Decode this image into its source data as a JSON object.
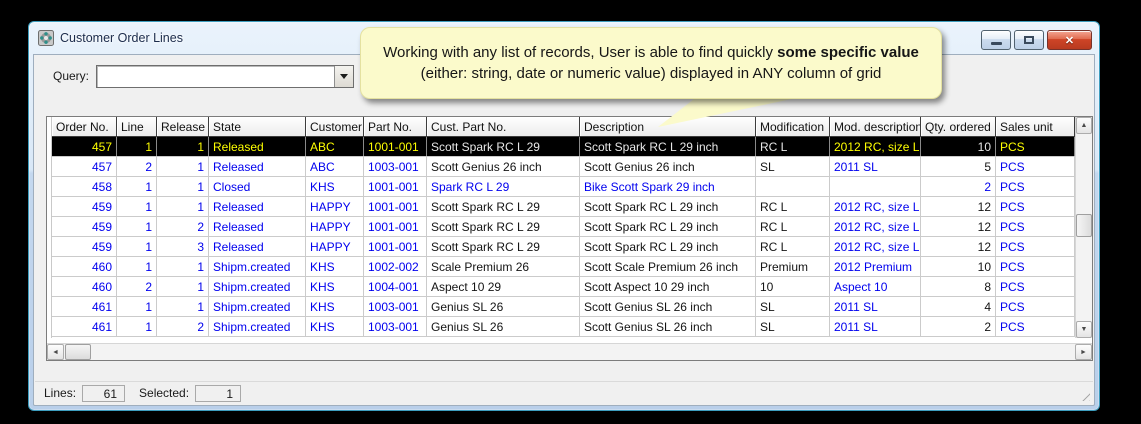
{
  "window": {
    "title": "Customer Order Lines"
  },
  "query": {
    "label": "Query:",
    "value": ""
  },
  "callout": {
    "part1": "Working with any list of records, User is able to find quickly ",
    "bold": "some specific value",
    "part2": " (either: string, date or numeric value) displayed in ANY column of grid"
  },
  "grid": {
    "columns": [
      {
        "label": "Order No.",
        "align": "right",
        "style": "blue"
      },
      {
        "label": "Line",
        "align": "right",
        "style": "blue"
      },
      {
        "label": "Release",
        "align": "right",
        "style": "blue"
      },
      {
        "label": "State",
        "align": "left",
        "style": "blue"
      },
      {
        "label": "Customer",
        "align": "left",
        "style": "blue"
      },
      {
        "label": "Part No.",
        "align": "left",
        "style": "blue"
      },
      {
        "label": "Cust. Part No.",
        "align": "left",
        "style": "black"
      },
      {
        "label": "Description",
        "align": "left",
        "style": "black"
      },
      {
        "label": "Modification",
        "align": "left",
        "style": "black"
      },
      {
        "label": "Mod. description",
        "align": "left",
        "style": "blue"
      },
      {
        "label": "Qty. ordered",
        "align": "right",
        "style": "black"
      },
      {
        "label": "Sales unit",
        "align": "left",
        "style": "blue"
      }
    ],
    "rows": [
      {
        "variant": "selected",
        "cells": [
          "457",
          "1",
          "1",
          "Released",
          "ABC",
          "1001-001",
          "Scott Spark RC L 29",
          "Scott Spark RC L 29 inch",
          "RC L",
          "2012 RC, size L",
          "10",
          "PCS"
        ]
      },
      {
        "variant": "normal",
        "cells": [
          "457",
          "2",
          "1",
          "Released",
          "ABC",
          "1003-001",
          "Scott Genius 26 inch",
          "Scott Genius 26 inch",
          "SL",
          "2011 SL",
          "5",
          "PCS"
        ]
      },
      {
        "variant": "closed",
        "cells": [
          "458",
          "1",
          "1",
          "Closed",
          "KHS",
          "1001-001",
          "Spark RC L 29",
          "Bike Scott Spark 29 inch",
          "",
          "",
          "2",
          "PCS"
        ]
      },
      {
        "variant": "normal",
        "cells": [
          "459",
          "1",
          "1",
          "Released",
          "HAPPY",
          "1001-001",
          "Scott Spark RC L 29",
          "Scott Spark RC L 29 inch",
          "RC L",
          "2012 RC, size L",
          "12",
          "PCS"
        ]
      },
      {
        "variant": "normal",
        "cells": [
          "459",
          "1",
          "2",
          "Released",
          "HAPPY",
          "1001-001",
          "Scott Spark RC L 29",
          "Scott Spark RC L 29 inch",
          "RC L",
          "2012 RC, size L",
          "12",
          "PCS"
        ]
      },
      {
        "variant": "normal",
        "cells": [
          "459",
          "1",
          "3",
          "Released",
          "HAPPY",
          "1001-001",
          "Scott Spark RC L 29",
          "Scott Spark RC L 29 inch",
          "RC L",
          "2012 RC, size L",
          "12",
          "PCS"
        ]
      },
      {
        "variant": "normal",
        "cells": [
          "460",
          "1",
          "1",
          "Shipm.created",
          "KHS",
          "1002-002",
          "Scale Premium 26",
          "Scott Scale Premium 26 inch",
          "Premium",
          "2012 Premium",
          "10",
          "PCS"
        ]
      },
      {
        "variant": "normal",
        "cells": [
          "460",
          "2",
          "1",
          "Shipm.created",
          "KHS",
          "1004-001",
          "Aspect 10 29",
          "Scott Aspect 10 29 inch",
          "10",
          "Aspect 10",
          "8",
          "PCS"
        ]
      },
      {
        "variant": "normal",
        "cells": [
          "461",
          "1",
          "1",
          "Shipm.created",
          "KHS",
          "1003-001",
          "Genius SL 26",
          "Scott Genius SL 26 inch",
          "SL",
          "2011 SL",
          "4",
          "PCS"
        ]
      },
      {
        "variant": "normal",
        "cells": [
          "461",
          "1",
          "2",
          "Shipm.created",
          "KHS",
          "1003-001",
          "Genius SL 26",
          "Scott Genius SL 26 inch",
          "SL",
          "2011 SL",
          "2",
          "PCS"
        ]
      }
    ]
  },
  "status": {
    "lines_label": "Lines:",
    "lines_value": "61",
    "selected_label": "Selected:",
    "selected_value": "1"
  },
  "colors": {
    "selected_bg": "#000000",
    "selected_text": "#FFFF00",
    "selected_text_alt": "#E8E8E8",
    "link_blue": "#0000EE",
    "callout_bg": "#FBFACB",
    "close_button_red": "#CE4427"
  }
}
